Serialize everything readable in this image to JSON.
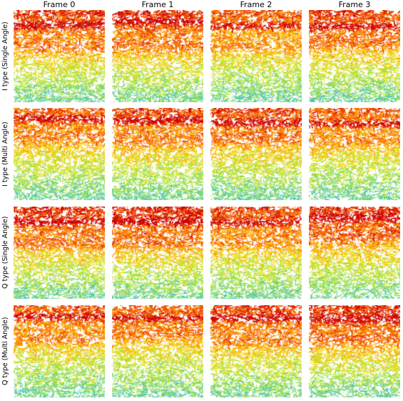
{
  "figure": {
    "column_titles": [
      "Frame 0",
      "Frame 1",
      "Frame 2",
      "Frame 3"
    ],
    "row_labels": [
      "I type (Single Angle)",
      "I type (Multi Angle)",
      "Q type (Single Angle)",
      "Q type (Multi Angle)"
    ],
    "colormap": {
      "name": "jet",
      "high": "#d40000",
      "mid_high": "#ff8a00",
      "mid": "#f2e600",
      "mid_low": "#9ee02a",
      "low": "#3dbfbf"
    }
  }
}
